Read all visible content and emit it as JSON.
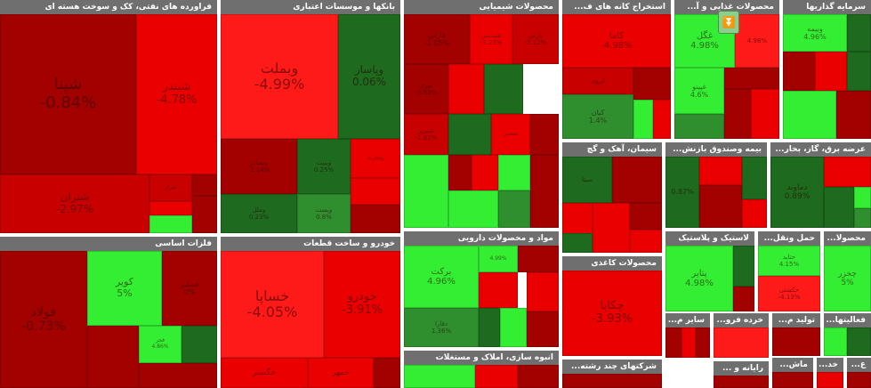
{
  "colors": {
    "header": "#6f6f6f",
    "dark_red": "#a30000",
    "red": "#ea0000",
    "bright_red": "#ff1a1a",
    "dark_green": "#1e6a1e",
    "green": "#2f8f2f",
    "bright_green": "#33ee33"
  },
  "control": {
    "icon": "double-chevron-down-icon"
  },
  "sectors": [
    {
      "title": "فراورده های نفتی، کک و سوخت هسته ای",
      "tiles": [
        {
          "name": "شپنا",
          "pct": "-0.84%",
          "color": "#a30000"
        },
        {
          "name": "شبندر",
          "pct": "-4.78%",
          "color": "#ea0000"
        },
        {
          "name": "شتران",
          "pct": "-2.97%",
          "color": "#c80000"
        },
        {
          "name": "شراز",
          "pct": "",
          "color": "#c80000"
        },
        {
          "name": "",
          "pct": "",
          "color": "#a30000"
        },
        {
          "name": "",
          "pct": "",
          "color": "#ea0000"
        },
        {
          "name": "",
          "pct": "",
          "color": "#33ee33"
        },
        {
          "name": "",
          "pct": "",
          "color": "#a30000"
        }
      ]
    },
    {
      "title": "بانکها و موسسات اعتباری",
      "tiles": [
        {
          "name": "وبملت",
          "pct": "-4.99%",
          "color": "#ff1a1a"
        },
        {
          "name": "وپاسار",
          "pct": "0.06%",
          "color": "#1e6a1e"
        },
        {
          "name": "وبصادر",
          "pct": "-1.14%",
          "color": "#a30000"
        },
        {
          "name": "وبنیت",
          "pct": "0.25%",
          "color": "#1e6a1e"
        },
        {
          "name": "وتجارت",
          "pct": "",
          "color": "#ea0000"
        },
        {
          "name": "وملل",
          "pct": "0.23%",
          "color": "#1e6a1e"
        },
        {
          "name": "وپست",
          "pct": "0.8%",
          "color": "#2f8f2f"
        },
        {
          "name": "",
          "pct": "",
          "color": "#ea0000"
        },
        {
          "name": "",
          "pct": "",
          "color": "#a30000"
        }
      ]
    },
    {
      "title": "محصولات شیمیایی",
      "tiles": [
        {
          "name": "فارس",
          "pct": "-1.05%",
          "color": "#a30000"
        },
        {
          "name": "شپدیس",
          "pct": "-3.23%",
          "color": "#ea0000"
        },
        {
          "name": "پارس",
          "pct": "-3.12%",
          "color": "#c80000"
        },
        {
          "name": "نوری",
          "pct": "-3.53%",
          "color": "#a30000"
        },
        {
          "name": "",
          "pct": "",
          "color": "#ea0000"
        },
        {
          "name": "",
          "pct": "",
          "color": "#1e6a1e"
        },
        {
          "name": "شبریز",
          "pct": "-1.62%",
          "color": "#c80000"
        },
        {
          "name": "",
          "pct": "",
          "color": "#1e6a1e"
        },
        {
          "name": "شغدیر",
          "pct": "",
          "color": "#ea0000"
        },
        {
          "name": "",
          "pct": "",
          "color": "#a30000"
        },
        {
          "name": "",
          "pct": "",
          "color": "#33ee33"
        },
        {
          "name": "",
          "pct": "",
          "color": "#a30000"
        },
        {
          "name": "",
          "pct": "",
          "color": "#ea0000"
        },
        {
          "name": "",
          "pct": "",
          "color": "#33ee33"
        },
        {
          "name": "",
          "pct": "",
          "color": "#33ee33"
        },
        {
          "name": "",
          "pct": "",
          "color": "#2f8f2f"
        },
        {
          "name": "",
          "pct": "",
          "color": "#a30000"
        }
      ]
    },
    {
      "title": "استخراج کانه های ف...",
      "tiles": [
        {
          "name": "کاما",
          "pct": "-4.98%",
          "color": "#ea0000"
        },
        {
          "name": "کروی",
          "pct": "",
          "color": "#c80000"
        },
        {
          "name": "کیان",
          "pct": "1.4%",
          "color": "#2f8f2f"
        },
        {
          "name": "",
          "pct": "",
          "color": "#a30000"
        },
        {
          "name": "",
          "pct": "",
          "color": "#33ee33"
        },
        {
          "name": "",
          "pct": "",
          "color": "#ea0000"
        }
      ]
    },
    {
      "title": "محصولات غذایی و آ...",
      "tiles": [
        {
          "name": "غگل",
          "pct": "4.98%",
          "color": "#33ee33"
        },
        {
          "name": "",
          "pct": "4.98%",
          "color": "#ff1a1a"
        },
        {
          "name": "غپینو",
          "pct": "4.6%",
          "color": "#33ee33"
        },
        {
          "name": "",
          "pct": "",
          "color": "#a30000"
        },
        {
          "name": "",
          "pct": "",
          "color": "#2f8f2f"
        },
        {
          "name": "",
          "pct": "",
          "color": "#a30000"
        },
        {
          "name": "",
          "pct": "",
          "color": "#ea0000"
        }
      ]
    },
    {
      "title": "سرمایه گذاریها",
      "tiles": [
        {
          "name": "وبیمه",
          "pct": "4.96%",
          "color": "#33ee33"
        },
        {
          "name": "",
          "pct": "",
          "color": "#1e6a1e"
        },
        {
          "name": "",
          "pct": "",
          "color": "#a30000"
        },
        {
          "name": "",
          "pct": "",
          "color": "#ea0000"
        },
        {
          "name": "",
          "pct": "",
          "color": "#1e6a1e"
        },
        {
          "name": "",
          "pct": "",
          "color": "#33ee33"
        },
        {
          "name": "",
          "pct": "",
          "color": "#a30000"
        }
      ]
    },
    {
      "title": "سیمان، آهک و گچ",
      "tiles": [
        {
          "name": "سیتا",
          "pct": "",
          "color": "#1e6a1e"
        },
        {
          "name": "",
          "pct": "",
          "color": "#a30000"
        },
        {
          "name": "",
          "pct": "",
          "color": "#ea0000"
        },
        {
          "name": "",
          "pct": "",
          "color": "#ea0000"
        },
        {
          "name": "",
          "pct": "",
          "color": "#a30000"
        },
        {
          "name": "",
          "pct": "",
          "color": "#ea0000"
        },
        {
          "name": "",
          "pct": "",
          "color": "#1e6a1e"
        }
      ]
    },
    {
      "title": "بیمه وصندوق بازنش...",
      "tiles": [
        {
          "name": "",
          "pct": "0.87%",
          "color": "#1e6a1e"
        },
        {
          "name": "",
          "pct": "",
          "color": "#ea0000"
        },
        {
          "name": "",
          "pct": "",
          "color": "#a30000"
        },
        {
          "name": "",
          "pct": "",
          "color": "#1e6a1e"
        },
        {
          "name": "",
          "pct": "",
          "color": "#ea0000"
        }
      ]
    },
    {
      "title": "عرضه برق، گاز، بخار...",
      "tiles": [
        {
          "name": "دماوند",
          "pct": "0.89%",
          "color": "#1e6a1e"
        },
        {
          "name": "",
          "pct": "",
          "color": "#ea0000"
        },
        {
          "name": "",
          "pct": "",
          "color": "#1e6a1e"
        },
        {
          "name": "",
          "pct": "",
          "color": "#33ee33"
        },
        {
          "name": "",
          "pct": "",
          "color": "#2f8f2f"
        }
      ]
    },
    {
      "title": "فلزات اساسی",
      "tiles": [
        {
          "name": "فولاد",
          "pct": "-0.73%",
          "color": "#a30000"
        },
        {
          "name": "کویر",
          "pct": "5%",
          "color": "#33ee33"
        },
        {
          "name": "فسلیر",
          "pct": "0%",
          "color": "#a30000"
        },
        {
          "name": "",
          "pct": "",
          "color": "#a30000"
        },
        {
          "name": "فجر",
          "pct": "4.86%",
          "color": "#33ee33"
        },
        {
          "name": "",
          "pct": "",
          "color": "#1e6a1e"
        },
        {
          "name": "",
          "pct": "",
          "color": "#a30000"
        }
      ]
    },
    {
      "title": "خودرو و ساخت قطعات",
      "tiles": [
        {
          "name": "خساپا",
          "pct": "-4.05%",
          "color": "#ff1a1a"
        },
        {
          "name": "خودرو",
          "pct": "-3.91%",
          "color": "#ea0000"
        },
        {
          "name": "خگستر",
          "pct": "",
          "color": "#ea0000"
        },
        {
          "name": "خمهر",
          "pct": "",
          "color": "#ea0000"
        },
        {
          "name": "",
          "pct": "",
          "color": "#a30000"
        }
      ]
    },
    {
      "title": "مواد و محصولات دارویی",
      "tiles": [
        {
          "name": "برکت",
          "pct": "4.96%",
          "color": "#33ee33"
        },
        {
          "name": "",
          "pct": "4.99%",
          "color": "#33ee33"
        },
        {
          "name": "",
          "pct": "",
          "color": "#a30000"
        },
        {
          "name": "",
          "pct": "",
          "color": "#ea0000"
        },
        {
          "name": "دفارا",
          "pct": "1.36%",
          "color": "#2f8f2f"
        },
        {
          "name": "",
          "pct": "",
          "color": "#1e6a1e"
        },
        {
          "name": "",
          "pct": "",
          "color": "#33ee33"
        },
        {
          "name": "",
          "pct": "",
          "color": "#ea0000"
        },
        {
          "name": "",
          "pct": "",
          "color": "#a30000"
        }
      ]
    },
    {
      "title": "محصولات کاغذی",
      "tiles": [
        {
          "name": "چکاپا",
          "pct": "-3.93%",
          "color": "#ea0000"
        }
      ]
    },
    {
      "title": "لاستیک و پلاستیک",
      "tiles": [
        {
          "name": "پتایر",
          "pct": "4.98%",
          "color": "#33ee33"
        },
        {
          "name": "",
          "pct": "",
          "color": "#1e6a1e"
        },
        {
          "name": "",
          "pct": "",
          "color": "#a30000"
        }
      ]
    },
    {
      "title": "حمل ونقل...",
      "tiles": [
        {
          "name": "حتاید",
          "pct": "4.15%",
          "color": "#33ee33"
        },
        {
          "name": "حکشتی",
          "pct": "-4.13%",
          "color": "#ff1a1a"
        },
        {
          "name": "",
          "pct": "",
          "color": "#a30000"
        }
      ]
    },
    {
      "title": "محصولا...",
      "tiles": [
        {
          "name": "چخزر",
          "pct": "5%",
          "color": "#33ee33"
        }
      ]
    },
    {
      "title": "انبوه سازی، املاک و مستغلات",
      "tiles": [
        {
          "name": "",
          "pct": "",
          "color": "#33ee33"
        },
        {
          "name": "",
          "pct": "",
          "color": "#ea0000"
        },
        {
          "name": "",
          "pct": "",
          "color": "#a30000"
        }
      ]
    },
    {
      "title": "شرکتهای چند رشته...",
      "tiles": [
        {
          "name": "",
          "pct": "",
          "color": "#a30000"
        }
      ]
    },
    {
      "title": "سایر م...",
      "tiles": [
        {
          "name": "",
          "pct": "",
          "color": "#a30000"
        },
        {
          "name": "",
          "pct": "",
          "color": "#ea0000"
        },
        {
          "name": "",
          "pct": "",
          "color": "#a30000"
        }
      ]
    },
    {
      "title": "خرده فرو...",
      "tiles": [
        {
          "name": "",
          "pct": "",
          "color": "#ff1a1a"
        }
      ]
    },
    {
      "title": "تولید م...",
      "tiles": [
        {
          "name": "",
          "pct": "",
          "color": "#a30000"
        }
      ]
    },
    {
      "title": "فعالیتها...",
      "tiles": [
        {
          "name": "",
          "pct": "",
          "color": "#33ee33"
        },
        {
          "name": "",
          "pct": "",
          "color": "#1e6a1e"
        }
      ]
    },
    {
      "title": "رایانه و ...",
      "tiles": [
        {
          "name": "",
          "pct": "",
          "color": "#a30000"
        }
      ]
    },
    {
      "title": "ماش...",
      "tiles": [
        {
          "name": "",
          "pct": "",
          "color": "#a30000"
        }
      ]
    },
    {
      "title": "خد...",
      "tiles": [
        {
          "name": "",
          "pct": "",
          "color": "#ea0000"
        }
      ]
    },
    {
      "title": "ع...",
      "tiles": [
        {
          "name": "",
          "pct": "",
          "color": "#a30000"
        }
      ]
    }
  ]
}
